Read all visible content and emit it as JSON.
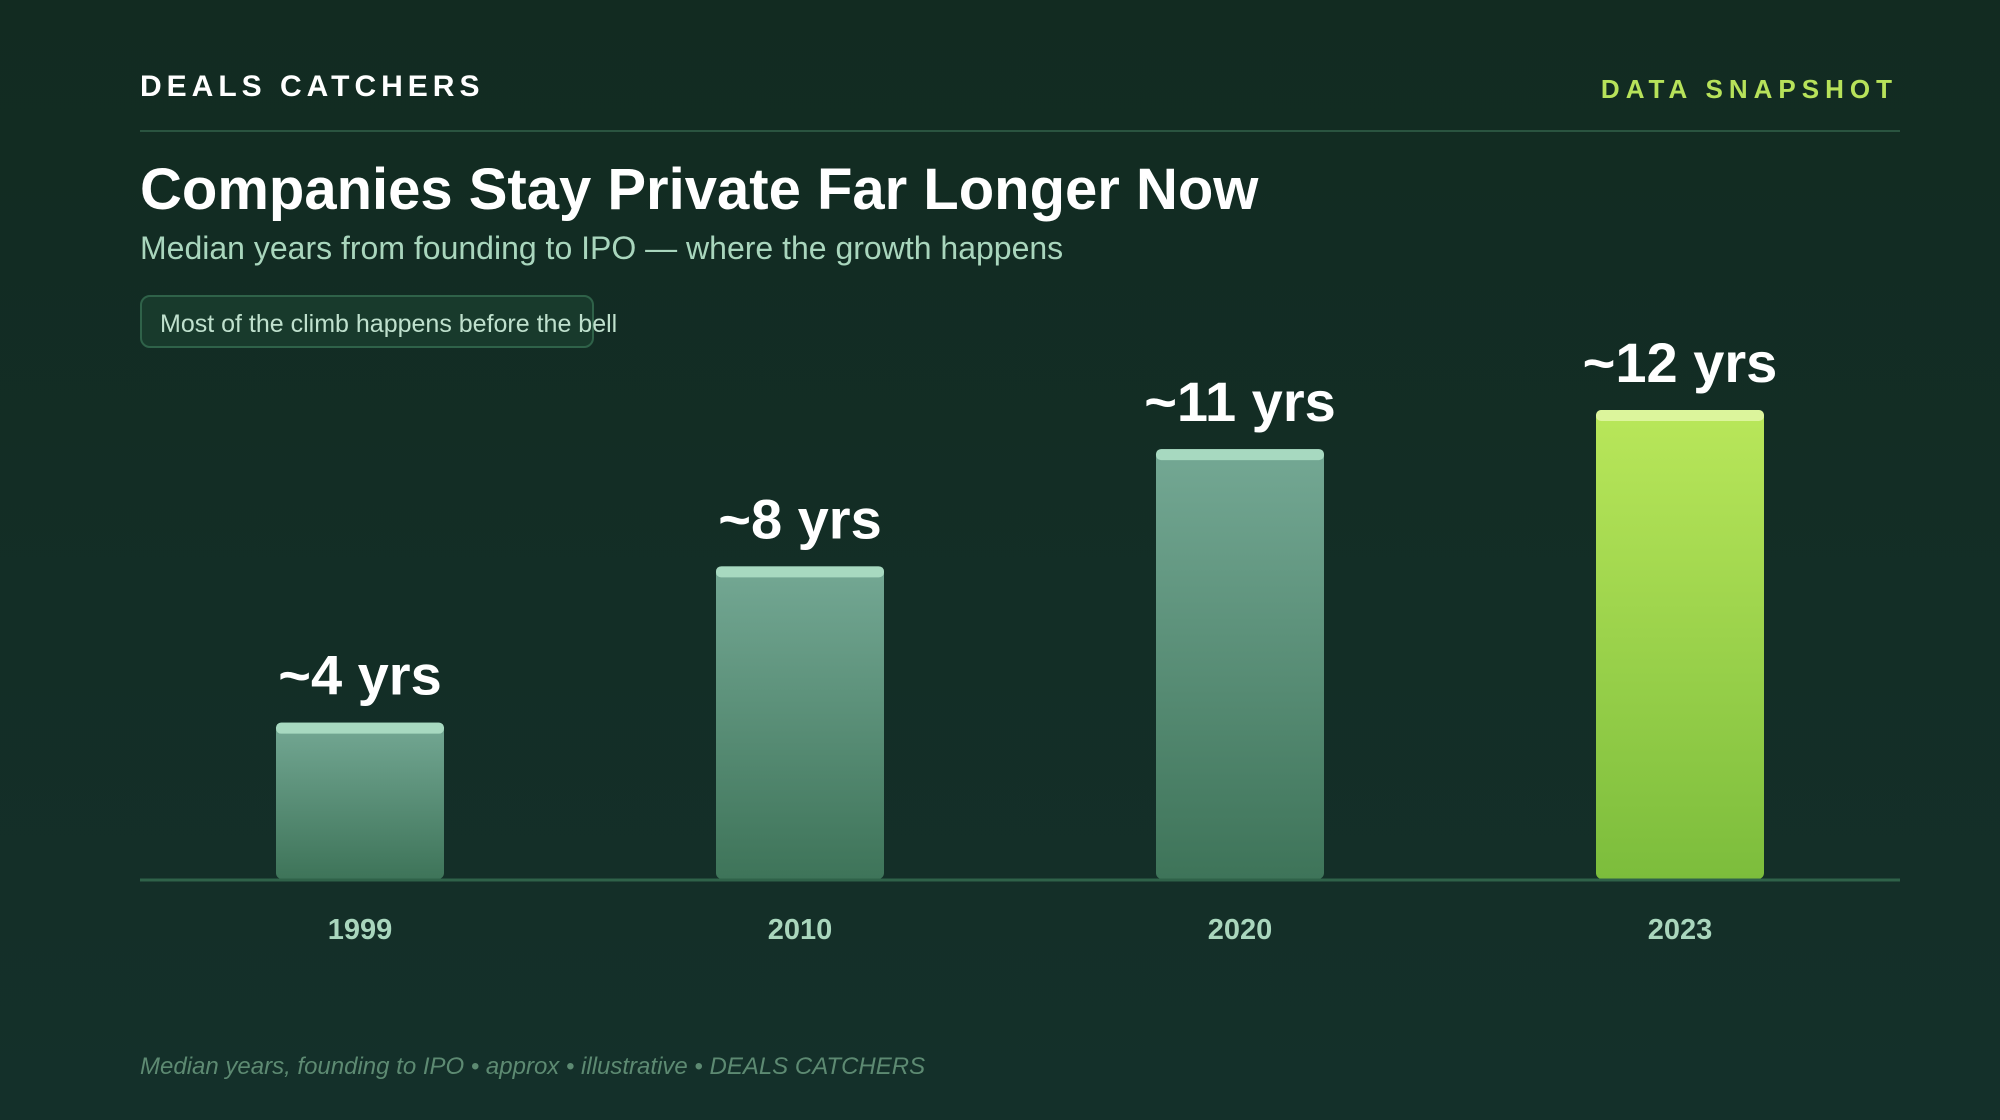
{
  "header": {
    "brand": "DEALS CATCHERS",
    "tag": "DATA SNAPSHOT"
  },
  "title": "Companies Stay Private Far Longer Now",
  "subtitle": "Median years from founding to IPO — where the growth happens",
  "callout": "Most of the climb happens before the bell",
  "footer": "Median years, founding to IPO • approx • illustrative • DEALS CATCHERS",
  "colors": {
    "background": "#132e23",
    "bar_gradient_top": "#74a894",
    "bar_gradient_bottom": "#3e7459",
    "bar_cap": "#a7d9c0",
    "highlight_gradient_top": "#b9e75a",
    "highlight_gradient_bottom": "#7cbd3c",
    "highlight_cap": "#dcf59c",
    "accent": "#b7e25a",
    "axis": "#2f6249"
  },
  "chart_data": {
    "type": "bar",
    "categories": [
      "1999",
      "2010",
      "2020",
      "2023"
    ],
    "values": [
      4,
      8,
      11,
      12
    ],
    "data_labels": [
      "~4 yrs",
      "~8 yrs",
      "~11 yrs",
      "~12 yrs"
    ],
    "highlight_index": 3,
    "ylim": [
      0,
      12
    ],
    "grid": false,
    "legend": "none"
  }
}
